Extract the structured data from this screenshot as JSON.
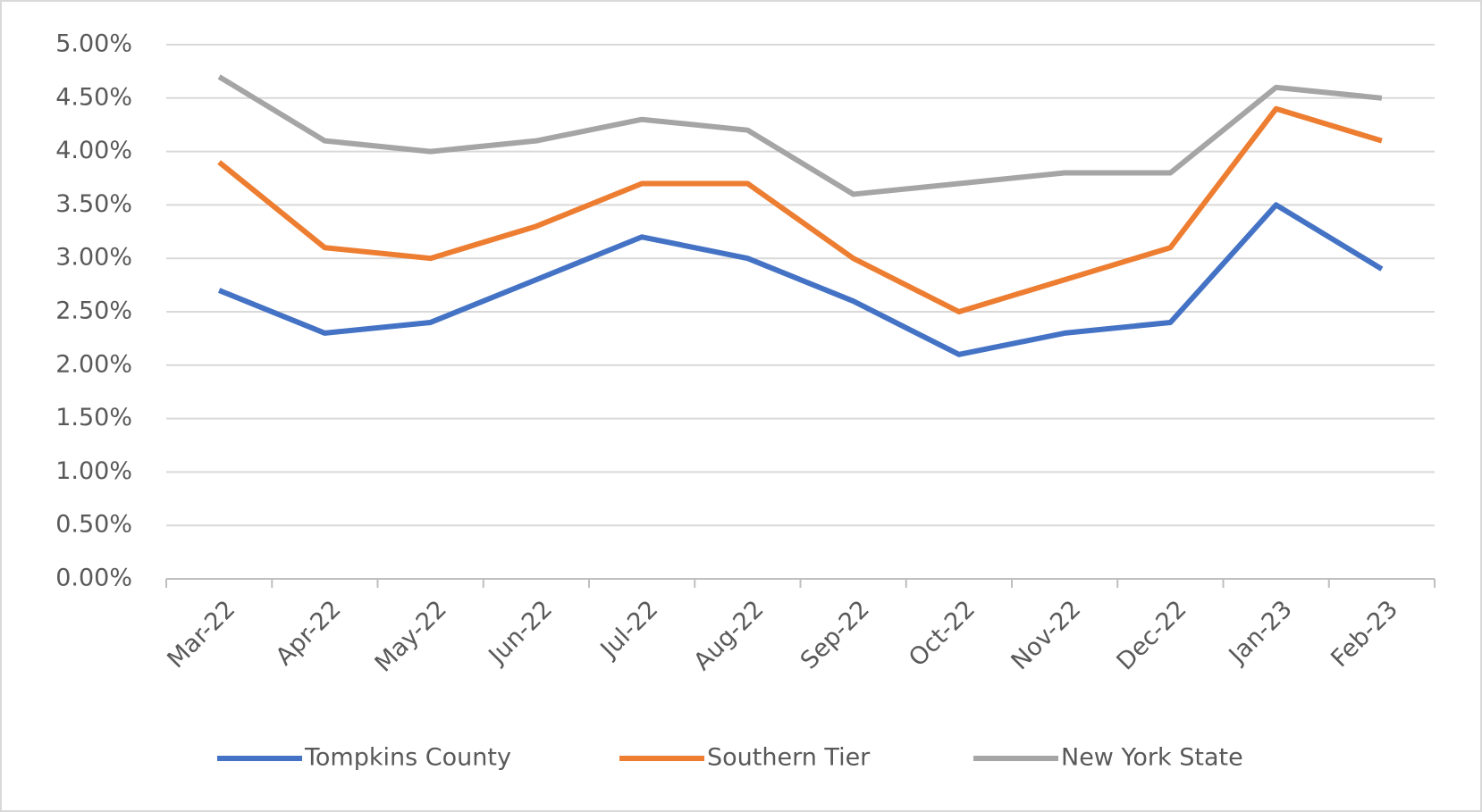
{
  "chart_data": {
    "type": "line",
    "categories": [
      "Mar-22",
      "Apr-22",
      "May-22",
      "Jun-22",
      "Jul-22",
      "Aug-22",
      "Sep-22",
      "Oct-22",
      "Nov-22",
      "Dec-22",
      "Jan-23",
      "Feb-23"
    ],
    "series": [
      {
        "name": "Tompkins County",
        "color": "#4472c4",
        "values": [
          2.7,
          2.3,
          2.4,
          2.8,
          3.2,
          3.0,
          2.6,
          2.1,
          2.3,
          2.4,
          3.5,
          2.9
        ]
      },
      {
        "name": "Southern Tier",
        "color": "#ed7d31",
        "values": [
          3.9,
          3.1,
          3.0,
          3.3,
          3.7,
          3.7,
          3.0,
          2.5,
          2.8,
          3.1,
          4.4,
          4.1
        ]
      },
      {
        "name": "New York State",
        "color": "#a5a5a5",
        "values": [
          4.7,
          4.1,
          4.0,
          4.1,
          4.3,
          4.2,
          3.6,
          3.7,
          3.8,
          3.8,
          4.6,
          4.5
        ]
      }
    ],
    "ylim": [
      0,
      5
    ],
    "yticks": [
      {
        "value": 0,
        "label": "0.00%"
      },
      {
        "value": 0.5,
        "label": "0.50%"
      },
      {
        "value": 1,
        "label": "1.00%"
      },
      {
        "value": 1.5,
        "label": "1.50%"
      },
      {
        "value": 2,
        "label": "2.00%"
      },
      {
        "value": 2.5,
        "label": "2.50%"
      },
      {
        "value": 3,
        "label": "3.00%"
      },
      {
        "value": 3.5,
        "label": "3.50%"
      },
      {
        "value": 4,
        "label": "4.00%"
      },
      {
        "value": 4.5,
        "label": "4.50%"
      },
      {
        "value": 5,
        "label": "5.00%"
      }
    ],
    "grid": true,
    "legend": "bottom"
  }
}
